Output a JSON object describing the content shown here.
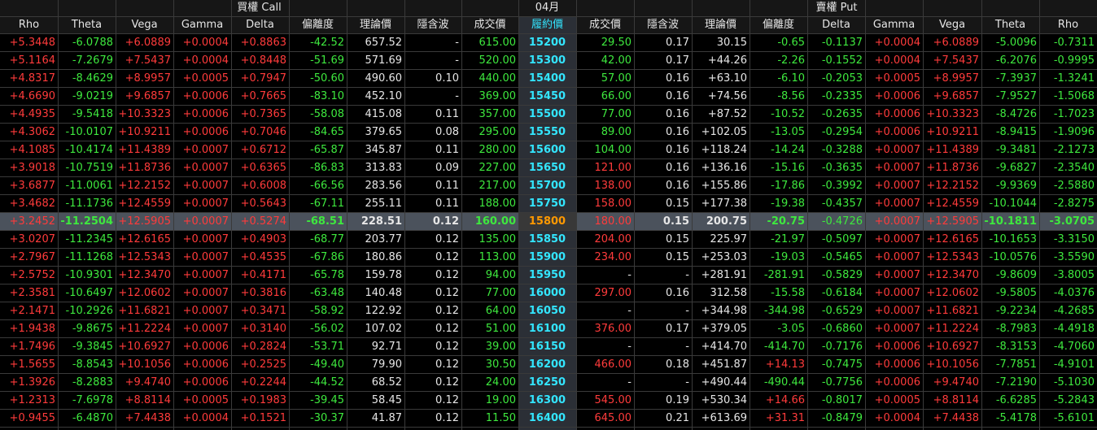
{
  "header": {
    "call_title": "買權 Call",
    "month": "04月",
    "put_title": "賣權 Put"
  },
  "columns": {
    "call": [
      "Rho",
      "Theta",
      "Vega",
      "Gamma",
      "Delta",
      "偏離度",
      "理論價",
      "隱含波",
      "成交價"
    ],
    "strike": "履約價",
    "put": [
      "成交價",
      "隱含波",
      "理論價",
      "偏離度",
      "Delta",
      "Gamma",
      "Vega",
      "Theta",
      "Rho"
    ]
  },
  "colors": {
    "up": "#ff3b3b",
    "down": "#3ee83e",
    "neutral": "#e6e6e6",
    "strike": "#33e6ff",
    "atm_strike": "#ff9900",
    "atm_row_bg": "#4b525c"
  },
  "atm_strike": "15800",
  "rows": [
    {
      "strike": "15200",
      "call": [
        "+5.3448",
        "-6.0788",
        "+6.0889",
        "+0.0004",
        "+0.8863",
        "-42.52",
        "657.52",
        "-",
        "615.00"
      ],
      "put": [
        "29.50",
        "0.17",
        "30.15",
        "-0.65",
        "-0.1137",
        "+0.0004",
        "+6.0889",
        "-5.0096",
        "-0.7311"
      ]
    },
    {
      "strike": "15300",
      "call": [
        "+5.1164",
        "-7.2679",
        "+7.5437",
        "+0.0004",
        "+0.8448",
        "-51.69",
        "571.69",
        "-",
        "520.00"
      ],
      "put": [
        "42.00",
        "0.17",
        "+44.26",
        "-2.26",
        "-0.1552",
        "+0.0004",
        "+7.5437",
        "-6.2076",
        "-0.9995"
      ]
    },
    {
      "strike": "15400",
      "call": [
        "+4.8317",
        "-8.4629",
        "+8.9957",
        "+0.0005",
        "+0.7947",
        "-50.60",
        "490.60",
        "0.10",
        "440.00"
      ],
      "put": [
        "57.00",
        "0.16",
        "+63.10",
        "-6.10",
        "-0.2053",
        "+0.0005",
        "+8.9957",
        "-7.3937",
        "-1.3241"
      ]
    },
    {
      "strike": "15450",
      "call": [
        "+4.6690",
        "-9.0219",
        "+9.6857",
        "+0.0006",
        "+0.7665",
        "-83.10",
        "452.10",
        "-",
        "369.00"
      ],
      "put": [
        "66.00",
        "0.16",
        "+74.56",
        "-8.56",
        "-0.2335",
        "+0.0006",
        "+9.6857",
        "-7.9527",
        "-1.5068"
      ]
    },
    {
      "strike": "15500",
      "call": [
        "+4.4935",
        "-9.5418",
        "+10.3323",
        "+0.0006",
        "+0.7365",
        "-58.08",
        "415.08",
        "0.11",
        "357.00"
      ],
      "put": [
        "77.00",
        "0.16",
        "+87.52",
        "-10.52",
        "-0.2635",
        "+0.0006",
        "+10.3323",
        "-8.4726",
        "-1.7023"
      ]
    },
    {
      "strike": "15550",
      "call": [
        "+4.3062",
        "-10.0107",
        "+10.9211",
        "+0.0006",
        "+0.7046",
        "-84.65",
        "379.65",
        "0.08",
        "295.00"
      ],
      "put": [
        "89.00",
        "0.16",
        "+102.05",
        "-13.05",
        "-0.2954",
        "+0.0006",
        "+10.9211",
        "-8.9415",
        "-1.9096"
      ]
    },
    {
      "strike": "15600",
      "call": [
        "+4.1085",
        "-10.4174",
        "+11.4389",
        "+0.0007",
        "+0.6712",
        "-65.87",
        "345.87",
        "0.11",
        "280.00"
      ],
      "put": [
        "104.00",
        "0.16",
        "+118.24",
        "-14.24",
        "-0.3288",
        "+0.0007",
        "+11.4389",
        "-9.3481",
        "-2.1273"
      ]
    },
    {
      "strike": "15650",
      "call": [
        "+3.9018",
        "-10.7519",
        "+11.8736",
        "+0.0007",
        "+0.6365",
        "-86.83",
        "313.83",
        "0.09",
        "227.00"
      ],
      "put": [
        "121.00",
        "0.16",
        "+136.16",
        "-15.16",
        "-0.3635",
        "+0.0007",
        "+11.8736",
        "-9.6827",
        "-2.3540"
      ]
    },
    {
      "strike": "15700",
      "call": [
        "+3.6877",
        "-11.0061",
        "+12.2152",
        "+0.0007",
        "+0.6008",
        "-66.56",
        "283.56",
        "0.11",
        "217.00"
      ],
      "put": [
        "138.00",
        "0.16",
        "+155.86",
        "-17.86",
        "-0.3992",
        "+0.0007",
        "+12.2152",
        "-9.9369",
        "-2.5880"
      ]
    },
    {
      "strike": "15750",
      "call": [
        "+3.4682",
        "-11.1736",
        "+12.4559",
        "+0.0007",
        "+0.5643",
        "-67.11",
        "255.11",
        "0.11",
        "188.00"
      ],
      "put": [
        "158.00",
        "0.15",
        "+177.38",
        "-19.38",
        "-0.4357",
        "+0.0007",
        "+12.4559",
        "-10.1044",
        "-2.8275"
      ]
    },
    {
      "strike": "15800",
      "call": [
        "+3.2452",
        "-11.2504",
        "+12.5905",
        "+0.0007",
        "+0.5274",
        "-68.51",
        "228.51",
        "0.12",
        "160.00"
      ],
      "put": [
        "180.00",
        "0.15",
        "200.75",
        "-20.75",
        "-0.4726",
        "+0.0007",
        "+12.5905",
        "-10.1811",
        "-3.0705"
      ]
    },
    {
      "strike": "15850",
      "call": [
        "+3.0207",
        "-11.2345",
        "+12.6165",
        "+0.0007",
        "+0.4903",
        "-68.77",
        "203.77",
        "0.12",
        "135.00"
      ],
      "put": [
        "204.00",
        "0.15",
        "225.97",
        "-21.97",
        "-0.5097",
        "+0.0007",
        "+12.6165",
        "-10.1653",
        "-3.3150"
      ]
    },
    {
      "strike": "15900",
      "call": [
        "+2.7967",
        "-11.1268",
        "+12.5343",
        "+0.0007",
        "+0.4535",
        "-67.86",
        "180.86",
        "0.12",
        "113.00"
      ],
      "put": [
        "234.00",
        "0.15",
        "+253.03",
        "-19.03",
        "-0.5465",
        "+0.0007",
        "+12.5343",
        "-10.0576",
        "-3.5590"
      ]
    },
    {
      "strike": "15950",
      "call": [
        "+2.5752",
        "-10.9301",
        "+12.3470",
        "+0.0007",
        "+0.4171",
        "-65.78",
        "159.78",
        "0.12",
        "94.00"
      ],
      "put": [
        "-",
        "-",
        "+281.91",
        "-281.91",
        "-0.5829",
        "+0.0007",
        "+12.3470",
        "-9.8609",
        "-3.8005"
      ]
    },
    {
      "strike": "16000",
      "call": [
        "+2.3581",
        "-10.6497",
        "+12.0602",
        "+0.0007",
        "+0.3816",
        "-63.48",
        "140.48",
        "0.12",
        "77.00"
      ],
      "put": [
        "297.00",
        "0.16",
        "312.58",
        "-15.58",
        "-0.6184",
        "+0.0007",
        "+12.0602",
        "-9.5805",
        "-4.0376"
      ]
    },
    {
      "strike": "16050",
      "call": [
        "+2.1471",
        "-10.2926",
        "+11.6821",
        "+0.0007",
        "+0.3471",
        "-58.92",
        "122.92",
        "0.12",
        "64.00"
      ],
      "put": [
        "-",
        "-",
        "+344.98",
        "-344.98",
        "-0.6529",
        "+0.0007",
        "+11.6821",
        "-9.2234",
        "-4.2685"
      ]
    },
    {
      "strike": "16100",
      "call": [
        "+1.9438",
        "-9.8675",
        "+11.2224",
        "+0.0007",
        "+0.3140",
        "-56.02",
        "107.02",
        "0.12",
        "51.00"
      ],
      "put": [
        "376.00",
        "0.17",
        "+379.05",
        "-3.05",
        "-0.6860",
        "+0.0007",
        "+11.2224",
        "-8.7983",
        "-4.4918"
      ]
    },
    {
      "strike": "16150",
      "call": [
        "+1.7496",
        "-9.3845",
        "+10.6927",
        "+0.0006",
        "+0.2824",
        "-53.71",
        "92.71",
        "0.12",
        "39.00"
      ],
      "put": [
        "-",
        "-",
        "+414.70",
        "-414.70",
        "-0.7176",
        "+0.0006",
        "+10.6927",
        "-8.3153",
        "-4.7060"
      ]
    },
    {
      "strike": "16200",
      "call": [
        "+1.5655",
        "-8.8543",
        "+10.1056",
        "+0.0006",
        "+0.2525",
        "-49.40",
        "79.90",
        "0.12",
        "30.50"
      ],
      "put": [
        "466.00",
        "0.18",
        "+451.87",
        "+14.13",
        "-0.7475",
        "+0.0006",
        "+10.1056",
        "-7.7851",
        "-4.9101"
      ]
    },
    {
      "strike": "16250",
      "call": [
        "+1.3926",
        "-8.2883",
        "+9.4740",
        "+0.0006",
        "+0.2244",
        "-44.52",
        "68.52",
        "0.12",
        "24.00"
      ],
      "put": [
        "-",
        "-",
        "+490.44",
        "-490.44",
        "-0.7756",
        "+0.0006",
        "+9.4740",
        "-7.2190",
        "-5.1030"
      ]
    },
    {
      "strike": "16300",
      "call": [
        "+1.2313",
        "-7.6978",
        "+8.8114",
        "+0.0005",
        "+0.1983",
        "-39.45",
        "58.45",
        "0.12",
        "19.00"
      ],
      "put": [
        "545.00",
        "0.19",
        "+530.34",
        "+14.66",
        "-0.8017",
        "+0.0005",
        "+8.8114",
        "-6.6285",
        "-5.2843"
      ]
    },
    {
      "strike": "16400",
      "call": [
        "+0.9455",
        "-6.4870",
        "+7.4438",
        "+0.0004",
        "+0.1521",
        "-30.37",
        "41.87",
        "0.12",
        "11.50"
      ],
      "put": [
        "645.00",
        "0.21",
        "+613.69",
        "+31.31",
        "-0.8479",
        "+0.0004",
        "+7.4438",
        "-5.4178",
        "-5.6101"
      ]
    }
  ]
}
